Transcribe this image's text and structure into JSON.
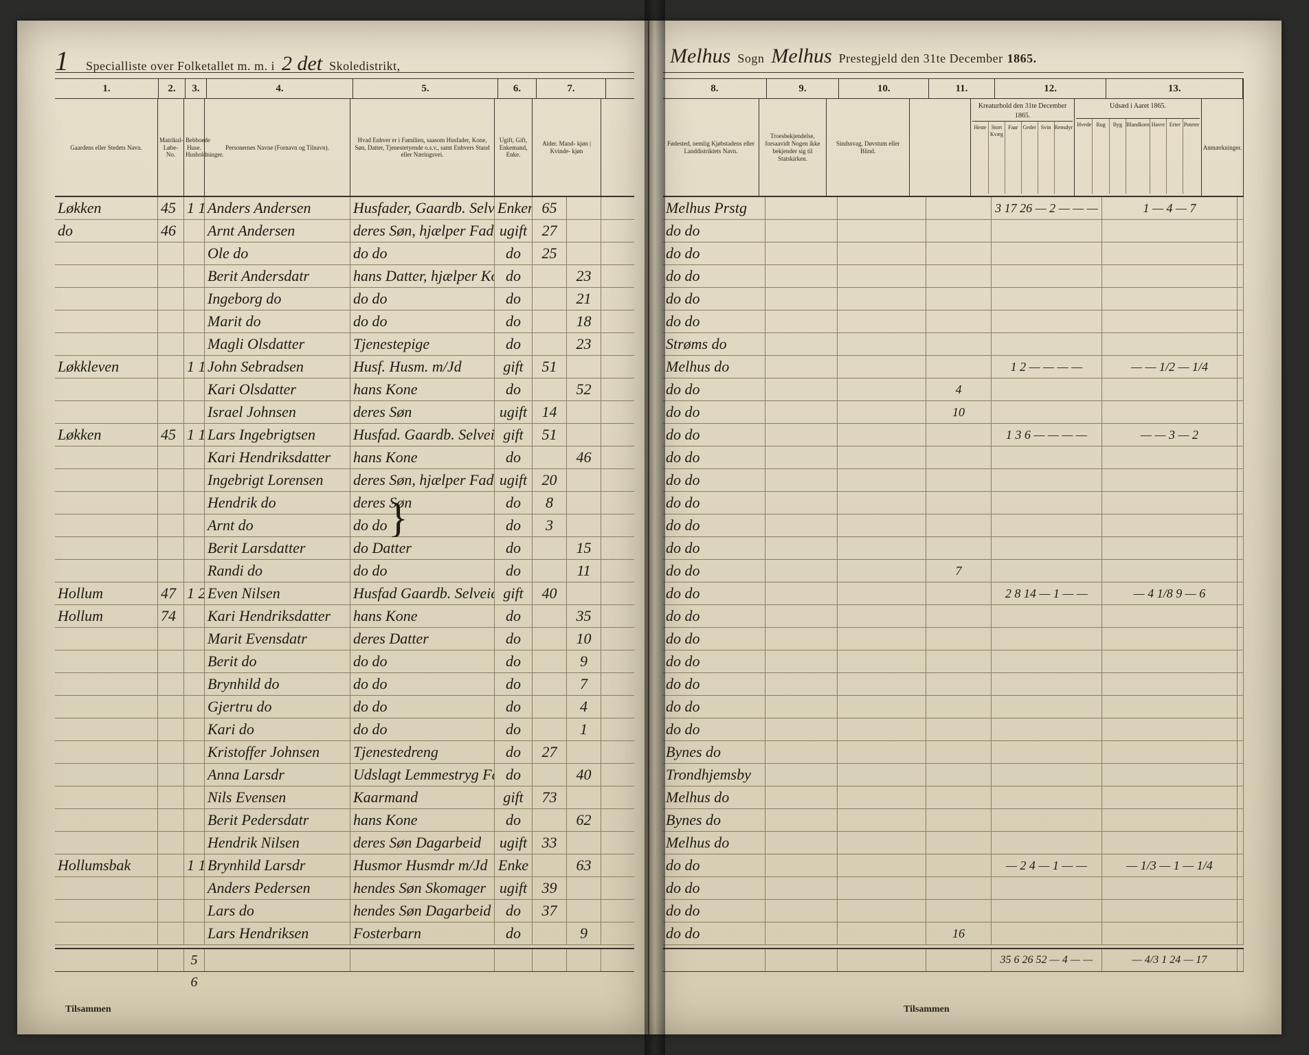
{
  "meta": {
    "title_left_print_1": "Specialliste over Folketallet m. m. i",
    "title_left_script_num": "1",
    "title_left_script_mid": "2 det",
    "title_left_print_2": "Skoledistrikt,",
    "title_right_script_1": "Melhus",
    "title_right_print_1": "Sogn",
    "title_right_script_2": "Melhus",
    "title_right_print_2": "Prestegjeld den 31te December",
    "title_right_year": "1865.",
    "footer_left": "Tilsammen",
    "footer_right": "Tilsammen"
  },
  "cols_left": {
    "nums": [
      "1.",
      "2.",
      "3.",
      "4.",
      "5.",
      "6.",
      "7."
    ],
    "widths": [
      150,
      38,
      30,
      212,
      210,
      55,
      100
    ],
    "heads": [
      "Gaardens eller Stedets\nNavn.",
      "Matrikul-Løbe-No.",
      "Bebboede Huse.\nHusholdninger.",
      "Personernes Navne (Fornavn og Tilnavn).",
      "Hvad Enhver er i Familien, saasom Husfader, Kone, Søn, Datter, Tjenestetyende o.s.v., samt Enhvers Stand eller Næringsvei.",
      "Ugift, Gift, Enkemand, Enke.",
      "Alder.\nMand-\nkjøn | Kvinde-\nkjøn"
    ]
  },
  "cols_right": {
    "nums": [
      "8.",
      "9.",
      "10.",
      "11.",
      "12.",
      "13."
    ],
    "widths": [
      150,
      105,
      130,
      95,
      162,
      198
    ],
    "heads": [
      "Fødested, nemlig Kjøbstadens eller Landdistriktets Navn.",
      "Troesbekjendelse, forsaavidt Nogen ikke bekjender sig til Statskirken.",
      "Sindssvag, Døvstum eller Blind.",
      "",
      "Kreaturhold den 31te December 1865.",
      "Udsæd i Aaret 1865."
    ],
    "sub12": [
      "Heste",
      "Stort Kvæg",
      "Faar",
      "Geder",
      "Svin",
      "Rensdyr"
    ],
    "sub13": [
      "Hvede",
      "Rug",
      "Byg",
      "Blandkorn",
      "Havre",
      "Erter",
      "Poteter"
    ],
    "anm": "Anmærkninger."
  },
  "rows": [
    {
      "l": [
        "Løkken",
        "45",
        "1 1",
        "Anders Andersen",
        "Husfader, Gaardb. Selveier",
        "Enkemd",
        "65",
        ""
      ],
      "r": [
        "Melhus Prstg",
        "",
        "",
        "",
        "3 17 26 — 2 — — —",
        "1 — 4 — 7",
        ""
      ]
    },
    {
      "l": [
        "do",
        "46",
        "",
        "Arnt Andersen",
        "deres Søn, hjælper Faderen med Gaardsbruget",
        "ugift",
        "27",
        ""
      ],
      "r": [
        "do   do",
        "",
        "",
        "",
        "",
        "",
        ""
      ]
    },
    {
      "l": [
        "",
        "",
        "",
        "Ole   do",
        "do     do",
        "do",
        "25",
        ""
      ],
      "r": [
        "do   do",
        "",
        "",
        "",
        "",
        "",
        ""
      ]
    },
    {
      "l": [
        "",
        "",
        "",
        "Berit Andersdatr",
        "hans Datter, hjælper Kone",
        "do",
        "",
        "23"
      ],
      "r": [
        "do   do",
        "",
        "",
        "",
        "",
        "",
        ""
      ]
    },
    {
      "l": [
        "",
        "",
        "",
        "Ingeborg  do",
        "do     do",
        "do",
        "",
        "21"
      ],
      "r": [
        "do   do",
        "",
        "",
        "",
        "",
        "",
        ""
      ]
    },
    {
      "l": [
        "",
        "",
        "",
        "Marit   do",
        "do     do",
        "do",
        "",
        "18"
      ],
      "r": [
        "do   do",
        "",
        "",
        "",
        "",
        "",
        ""
      ]
    },
    {
      "l": [
        "",
        "",
        "",
        "Magli Olsdatter",
        "Tjenestepige",
        "do",
        "",
        "23"
      ],
      "r": [
        "Strøms  do",
        "",
        "",
        "",
        "",
        "",
        ""
      ]
    },
    {
      "l": [
        "Løkkleven",
        "",
        "1 1",
        "John Sebradsen",
        "Husf. Husm. m/Jd",
        "gift",
        "51",
        ""
      ],
      "r": [
        "Melhus  do",
        "",
        "",
        "",
        "  1 2 — — — —",
        "— — 1/2 — 1/4",
        ""
      ]
    },
    {
      "l": [
        "",
        "",
        "",
        "Kari Olsdatter",
        "hans Kone",
        "do",
        "",
        "52"
      ],
      "r": [
        "do   do",
        "",
        "",
        "4",
        "",
        "",
        ""
      ]
    },
    {
      "l": [
        "",
        "",
        "",
        "Israel Johnsen",
        "deres Søn",
        "ugift",
        "14",
        ""
      ],
      "r": [
        "do   do",
        "",
        "",
        "10",
        "",
        "",
        ""
      ]
    },
    {
      "l": [
        "Løkken",
        "45",
        "1 1",
        "Lars Ingebrigtsen",
        "Husfad. Gaardb. Selveier",
        "gift",
        "51",
        ""
      ],
      "r": [
        "do   do",
        "",
        "",
        "",
        "1 3 6 — — — —",
        "— — 3 — 2",
        ""
      ]
    },
    {
      "l": [
        "",
        "",
        "",
        "Kari Hendriksdatter",
        "hans Kone",
        "do",
        "",
        "46"
      ],
      "r": [
        "do   do",
        "",
        "",
        "",
        "",
        "",
        ""
      ]
    },
    {
      "l": [
        "",
        "",
        "",
        "Ingebrigt Lorensen",
        "deres Søn, hjælper Faderen",
        "ugift",
        "20",
        ""
      ],
      "r": [
        "do   do",
        "",
        "",
        "",
        "",
        "",
        ""
      ]
    },
    {
      "l": [
        "",
        "",
        "",
        "Hendrik  do",
        "deres Søn",
        "do",
        "8",
        ""
      ],
      "r": [
        "do   do",
        "",
        "",
        "",
        "",
        "",
        ""
      ]
    },
    {
      "l": [
        "",
        "",
        "",
        "Arnt   do",
        "do   do",
        "do",
        "3",
        ""
      ],
      "r": [
        "do   do",
        "",
        "",
        "",
        "",
        "",
        ""
      ]
    },
    {
      "l": [
        "",
        "",
        "",
        "Berit Larsdatter",
        "do  Datter",
        "do",
        "",
        "15"
      ],
      "r": [
        "do   do",
        "",
        "",
        "",
        "",
        "",
        ""
      ]
    },
    {
      "l": [
        "",
        "",
        "",
        "Randi  do",
        "do   do",
        "do",
        "",
        "11"
      ],
      "r": [
        "do   do",
        "",
        "",
        "7",
        "",
        "",
        ""
      ]
    },
    {
      "l": [
        "Hollum",
        "47",
        "1 2",
        "Even Nilsen",
        "Husfad Gaardb. Selveier",
        "gift",
        "40",
        ""
      ],
      "r": [
        "do   do",
        "",
        "",
        "",
        "2 8 14 — 1 — —",
        "— 4 1/8 9 — 6",
        ""
      ]
    },
    {
      "l": [
        "Hollum",
        "74",
        "",
        "Kari Hendriksdatter",
        "hans Kone",
        "do",
        "",
        "35"
      ],
      "r": [
        "do   do",
        "",
        "",
        "",
        "",
        "",
        ""
      ]
    },
    {
      "l": [
        "",
        "",
        "",
        "Marit Evensdatr",
        "deres Datter",
        "do",
        "",
        "10"
      ],
      "r": [
        "do   do",
        "",
        "",
        "",
        "",
        "",
        ""
      ]
    },
    {
      "l": [
        "",
        "",
        "",
        "Berit   do",
        "do   do",
        "do",
        "",
        "9"
      ],
      "r": [
        "do   do",
        "",
        "",
        "",
        "",
        "",
        ""
      ]
    },
    {
      "l": [
        "",
        "",
        "",
        "Brynhild  do",
        "do   do",
        "do",
        "",
        "7"
      ],
      "r": [
        "do   do",
        "",
        "",
        "",
        "",
        "",
        ""
      ]
    },
    {
      "l": [
        "",
        "",
        "",
        "Gjertru   do",
        "do   do",
        "do",
        "",
        "4"
      ],
      "r": [
        "do   do",
        "",
        "",
        "",
        "",
        "",
        ""
      ]
    },
    {
      "l": [
        "",
        "",
        "",
        "Kari   do",
        "do   do",
        "do",
        "",
        "1"
      ],
      "r": [
        "do   do",
        "",
        "",
        "",
        "",
        "",
        ""
      ]
    },
    {
      "l": [
        "",
        "",
        "",
        "Kristoffer Johnsen",
        "Tjenestedreng",
        "do",
        "27",
        ""
      ],
      "r": [
        "Bynes  do",
        "",
        "",
        "",
        "",
        "",
        ""
      ]
    },
    {
      "l": [
        "",
        "",
        "",
        "Anna Larsdr",
        "Udslagt Lemmestryg Fattigbarn",
        "do",
        "",
        "40"
      ],
      "r": [
        "Trondhjemsby",
        "",
        "",
        "",
        "",
        "",
        ""
      ]
    },
    {
      "l": [
        "",
        "",
        "",
        "Nils Evensen",
        "Kaarmand",
        "gift",
        "73",
        ""
      ],
      "r": [
        "Melhus do",
        "",
        "",
        "",
        "",
        "",
        ""
      ]
    },
    {
      "l": [
        "",
        "",
        "",
        "Berit Pedersdatr",
        "hans Kone",
        "do",
        "",
        "62"
      ],
      "r": [
        "Bynes  do",
        "",
        "",
        "",
        "",
        "",
        ""
      ]
    },
    {
      "l": [
        "",
        "",
        "",
        "Hendrik Nilsen",
        "deres Søn Dagarbeid",
        "ugift",
        "33",
        ""
      ],
      "r": [
        "Melhus do",
        "",
        "",
        "",
        "",
        "",
        ""
      ]
    },
    {
      "l": [
        "Hollumsbak",
        "",
        "1 1",
        "Brynhild Larsdr",
        "Husmor Husmdr m/Jd",
        "Enke",
        "",
        "63"
      ],
      "r": [
        "do   do",
        "",
        "",
        "",
        "— 2 4 — 1 — —",
        "— 1/3 — 1 — 1/4",
        ""
      ]
    },
    {
      "l": [
        "",
        "",
        "",
        "Anders Pedersen",
        "hendes Søn Skomager",
        "ugift",
        "39",
        ""
      ],
      "r": [
        "do   do",
        "",
        "",
        "",
        "",
        "",
        ""
      ]
    },
    {
      "l": [
        "",
        "",
        "",
        "Lars   do",
        "hendes Søn Dagarbeid",
        "do",
        "37",
        ""
      ],
      "r": [
        "do   do",
        "",
        "",
        "",
        "",
        "",
        ""
      ]
    },
    {
      "l": [
        "",
        "",
        "",
        "Lars Hendriksen",
        "Fosterbarn",
        "do",
        "",
        "9"
      ],
      "r": [
        "do   do",
        "",
        "",
        "16",
        "",
        "",
        ""
      ]
    }
  ],
  "sums": {
    "left": [
      "",
      "",
      "5 6",
      "",
      "",
      "",
      "",
      ""
    ],
    "right": [
      "",
      "",
      "",
      "",
      "35 6 26 52 — 4 — —",
      "— 4/3 1 24 — 17",
      ""
    ]
  },
  "colors": {
    "paper": "#e0d7bf",
    "ink": "#1f1a12",
    "rule": "#3a3228",
    "faint": "#8a7d60"
  }
}
